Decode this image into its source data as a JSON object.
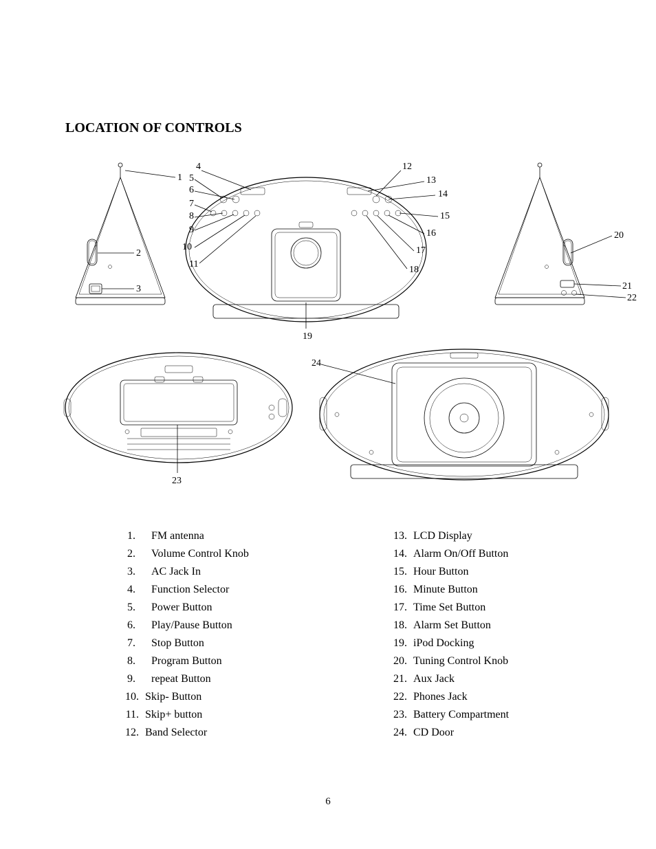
{
  "title": "LOCATION OF CONTROLS",
  "page_number": "6",
  "controls_left": [
    {
      "n": "1.",
      "label": "FM antenna"
    },
    {
      "n": "2.",
      "label": "Volume Control Knob"
    },
    {
      "n": "3.",
      "label": "AC Jack In"
    },
    {
      "n": "4.",
      "label": "Function Selector"
    },
    {
      "n": "5.",
      "label": "Power Button"
    },
    {
      "n": "6.",
      "label": "Play/Pause Button"
    },
    {
      "n": "7.",
      "label": "Stop Button"
    },
    {
      "n": "8.",
      "label": "Program Button"
    },
    {
      "n": "9.",
      "label": "repeat Button"
    },
    {
      "n": "10.",
      "label": "Skip- Button"
    },
    {
      "n": "11.",
      "label": "Skip+ button"
    },
    {
      "n": "12.",
      "label": "Band Selector"
    }
  ],
  "controls_right": [
    {
      "n": "13.",
      "label": "LCD Display"
    },
    {
      "n": "14.",
      "label": "Alarm On/Off Button"
    },
    {
      "n": "15.",
      "label": "Hour Button"
    },
    {
      "n": "16.",
      "label": "Minute Button"
    },
    {
      "n": "17.",
      "label": "Time Set Button"
    },
    {
      "n": "18.",
      "label": "Alarm Set Button"
    },
    {
      "n": "19.",
      "label": "iPod Docking"
    },
    {
      "n": "20.",
      "label": "Tuning Control Knob"
    },
    {
      "n": "21.",
      "label": "Aux Jack"
    },
    {
      "n": "22.",
      "label": "Phones Jack"
    },
    {
      "n": "23.",
      "label": "Battery Compartment"
    },
    {
      "n": "24.",
      "label": "CD Door"
    }
  ],
  "diagram": {
    "callout_labels": [
      "1",
      "2",
      "3",
      "4",
      "5",
      "6",
      "7",
      "8",
      "9",
      "10",
      "11",
      "12",
      "13",
      "14",
      "15",
      "16",
      "17",
      "18",
      "19",
      "20",
      "21",
      "22",
      "23",
      "24"
    ]
  }
}
